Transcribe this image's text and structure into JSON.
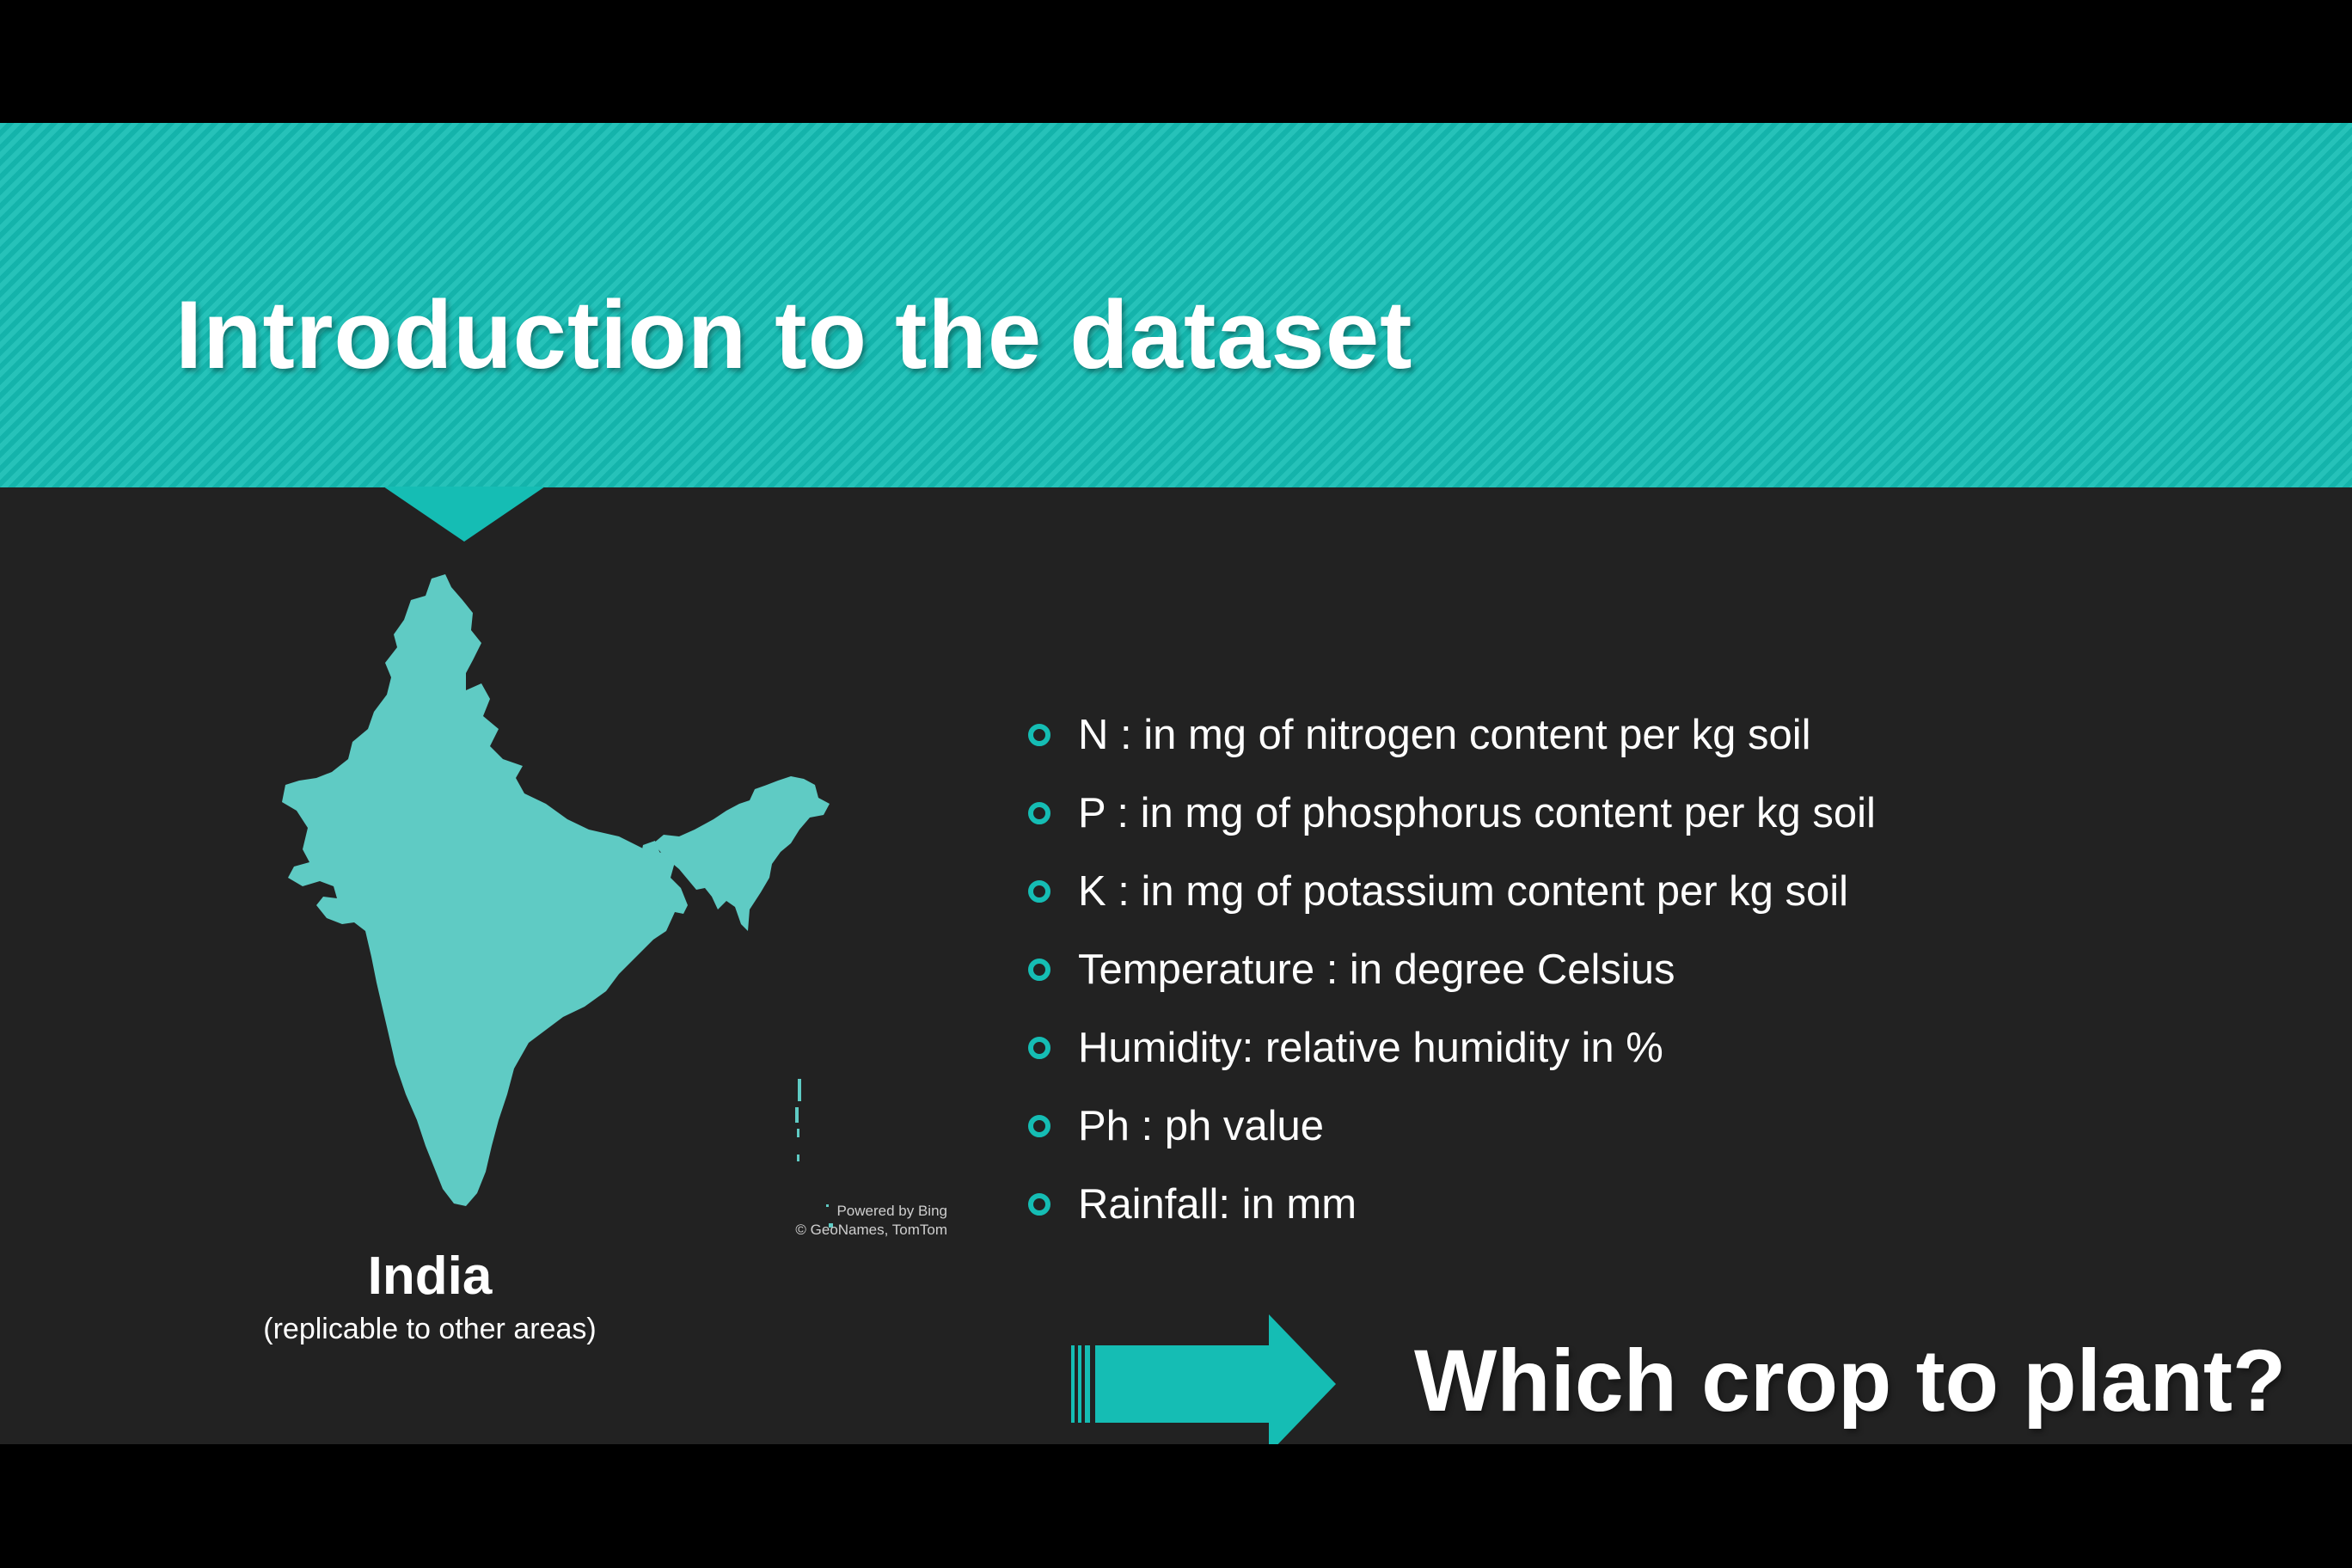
{
  "slide": {
    "title": "Introduction to the dataset",
    "map": {
      "label": "India",
      "sublabel": "(replicable to other areas)",
      "credit_line1": "Powered by Bing",
      "credit_line2": "© GeoNames, TomTom"
    },
    "bullets": [
      {
        "text": "N : in mg of nitrogen content per kg soil"
      },
      {
        "text": "P : in mg of phosphorus content per kg soil"
      },
      {
        "text": "K : in mg of potassium content per kg soil"
      },
      {
        "text": "Temperature : in degree Celsius"
      },
      {
        "text": "Humidity: relative humidity in %"
      },
      {
        "text": "Ph : ph value"
      },
      {
        "text": "Rainfall: in mm"
      }
    ],
    "question": "Which crop to plant?"
  },
  "colors": {
    "accent": "#15bdb4",
    "map_fill": "#5fcbc4",
    "background": "#222222",
    "text": "#ffffff"
  },
  "icons": {
    "bullet": "hollow-circle",
    "arrow": "right-arrow"
  }
}
